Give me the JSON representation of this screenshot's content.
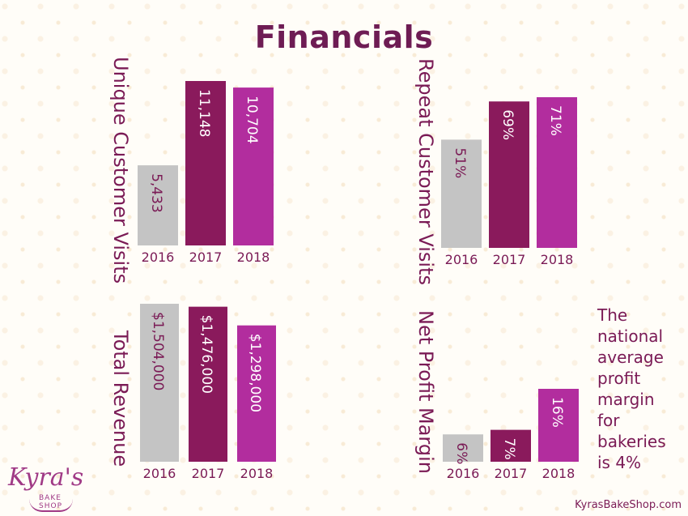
{
  "title": "Financials",
  "note": "The national average profit margin for bakeries is 4%",
  "website": "KyrasBakeShop.com",
  "logo": {
    "name": "Kyra's",
    "subtitle": "BAKE SHOP"
  },
  "colors": {
    "y2016": "#c4c4c4",
    "y2017": "#8a1a5c",
    "y2018": "#b22d9e",
    "text": "#7a1a55",
    "bar_text_light": "#ffffff",
    "bar_text_dark": "#7a1a55"
  },
  "chart_data": [
    {
      "type": "bar",
      "title": "Unique Customer Visits",
      "categories": [
        "2016",
        "2017",
        "2018"
      ],
      "values": [
        5433,
        11148,
        10704
      ],
      "value_labels": [
        "5,433",
        "11,148",
        "10,704"
      ],
      "ylim": [
        0,
        11148
      ]
    },
    {
      "type": "bar",
      "title": "Repeat Customer Visits",
      "categories": [
        "2016",
        "2017",
        "2018"
      ],
      "values": [
        51,
        69,
        71
      ],
      "value_labels": [
        "51%",
        "69%",
        "71%"
      ],
      "ylim": [
        0,
        71
      ]
    },
    {
      "type": "bar",
      "title": "Total Revenue",
      "categories": [
        "2016",
        "2017",
        "2018"
      ],
      "values": [
        1504000,
        1476000,
        1298000
      ],
      "value_labels": [
        "$1,504,000",
        "$1,476,000",
        "$1,298,000"
      ],
      "ylim": [
        0,
        1504000
      ]
    },
    {
      "type": "bar",
      "title": "Net Profit Margin",
      "categories": [
        "2016",
        "2017",
        "2018"
      ],
      "values": [
        6,
        7,
        16
      ],
      "value_labels": [
        "6%",
        "7%",
        "16%"
      ],
      "ylim": [
        0,
        16
      ]
    }
  ]
}
